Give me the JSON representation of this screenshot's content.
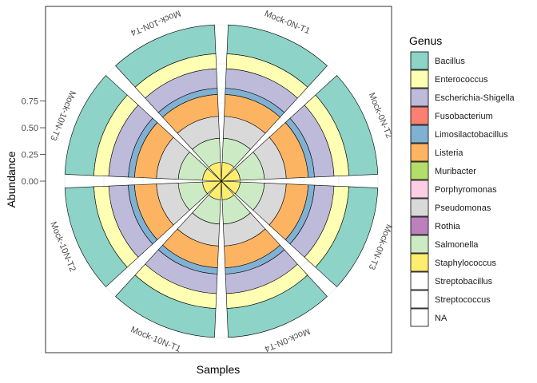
{
  "chart_data": {
    "type": "bar",
    "coordinate_system": "polar",
    "xlabel": "Samples",
    "ylabel": "Abundance",
    "y_ticks": [
      "0.00",
      "0.25",
      "0.50",
      "0.75"
    ],
    "ylim": [
      0,
      1
    ],
    "grid": true,
    "legend_placement": "right",
    "legend_title": "Genus",
    "categories": [
      "Mock-0N-T1",
      "Mock-0N-T2",
      "Mock-0N-T3",
      "Mock-0N-T4",
      "Mock-10N-T1",
      "Mock-10N-T2",
      "Mock-10N-T3",
      "Mock-10N-T4"
    ],
    "series": [
      {
        "name": "Bacillus",
        "color": "#8DD3C7",
        "values": [
          0.185,
          0.185,
          0.185,
          0.185,
          0.185,
          0.185,
          0.185,
          0.185
        ]
      },
      {
        "name": "Enterococcus",
        "color": "#FFFFB3",
        "values": [
          0.095,
          0.095,
          0.095,
          0.095,
          0.095,
          0.095,
          0.095,
          0.095
        ]
      },
      {
        "name": "Escherichia-Shigella",
        "color": "#BEBADA",
        "values": [
          0.125,
          0.125,
          0.125,
          0.125,
          0.125,
          0.125,
          0.125,
          0.125
        ]
      },
      {
        "name": "Fusobacterium",
        "color": "#FB8072",
        "values": [
          0,
          0,
          0,
          0,
          0,
          0,
          0,
          0
        ]
      },
      {
        "name": "Limosilactobacillus",
        "color": "#80B1D3",
        "values": [
          0.04,
          0.04,
          0.04,
          0.04,
          0.04,
          0.04,
          0.04,
          0.04
        ]
      },
      {
        "name": "Listeria",
        "color": "#FDB462",
        "values": [
          0.14,
          0.14,
          0.14,
          0.14,
          0.14,
          0.14,
          0.14,
          0.14
        ]
      },
      {
        "name": "Muribacter",
        "color": "#B3DE69",
        "values": [
          0,
          0,
          0,
          0,
          0,
          0,
          0,
          0
        ]
      },
      {
        "name": "Porphyromonas",
        "color": "#FCCDE5",
        "values": [
          0,
          0,
          0,
          0,
          0,
          0,
          0,
          0
        ]
      },
      {
        "name": "Pseudomonas",
        "color": "#D9D9D9",
        "values": [
          0.14,
          0.14,
          0.14,
          0.14,
          0.14,
          0.14,
          0.14,
          0.14
        ]
      },
      {
        "name": "Rothia",
        "color": "#BC80BD",
        "values": [
          0,
          0,
          0,
          0,
          0,
          0,
          0,
          0
        ]
      },
      {
        "name": "Salmonella",
        "color": "#CCEBC5",
        "values": [
          0.155,
          0.155,
          0.155,
          0.155,
          0.155,
          0.155,
          0.155,
          0.155
        ]
      },
      {
        "name": "Staphylococcus",
        "color": "#FFED6F",
        "values": [
          0.12,
          0.12,
          0.12,
          0.12,
          0.12,
          0.12,
          0.12,
          0.12
        ]
      },
      {
        "name": "Streptobacillus",
        "color": "#FFFFFF",
        "values": [
          0,
          0,
          0,
          0,
          0,
          0,
          0,
          0
        ]
      },
      {
        "name": "Streptococcus",
        "color": "#FFFFFF",
        "values": [
          0,
          0,
          0,
          0,
          0,
          0,
          0,
          0
        ]
      },
      {
        "name": "NA",
        "color": "#FFFFFF",
        "values": [
          0,
          0,
          0,
          0,
          0,
          0,
          0,
          0
        ]
      }
    ]
  }
}
